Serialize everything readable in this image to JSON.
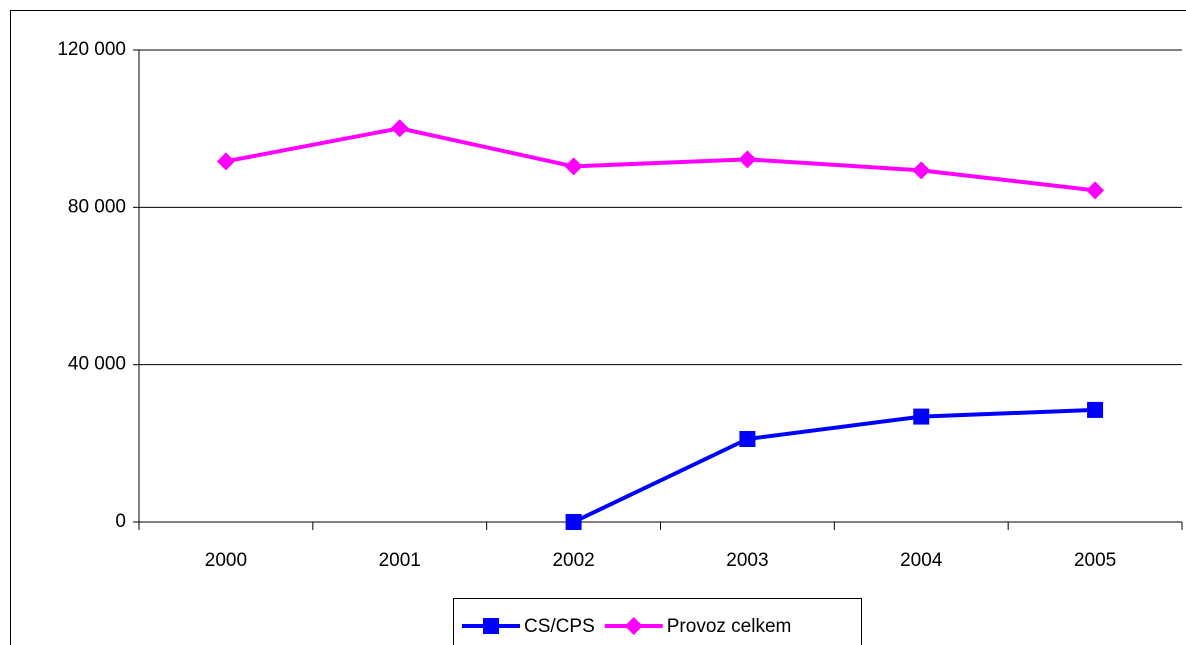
{
  "chart_data": {
    "type": "line",
    "categories": [
      "2000",
      "2001",
      "2002",
      "2003",
      "2004",
      "2005"
    ],
    "series": [
      {
        "name": "CS/CPS",
        "color": "#0000ff",
        "marker": "square",
        "values": [
          null,
          null,
          0,
          21100,
          26800,
          28500
        ]
      },
      {
        "name": "Provoz celkem",
        "color": "#ff00ff",
        "marker": "diamond",
        "values": [
          91700,
          100100,
          90400,
          92200,
          89400,
          84300
        ]
      }
    ],
    "ylim": [
      0,
      120000
    ],
    "yticks": [
      0,
      {
        "value": 40000,
        "label": "40 000"
      },
      {
        "value": 80000,
        "label": "80 000"
      },
      {
        "value": 120000,
        "label": "120 000"
      }
    ],
    "grid": true,
    "legend": "bottom"
  }
}
